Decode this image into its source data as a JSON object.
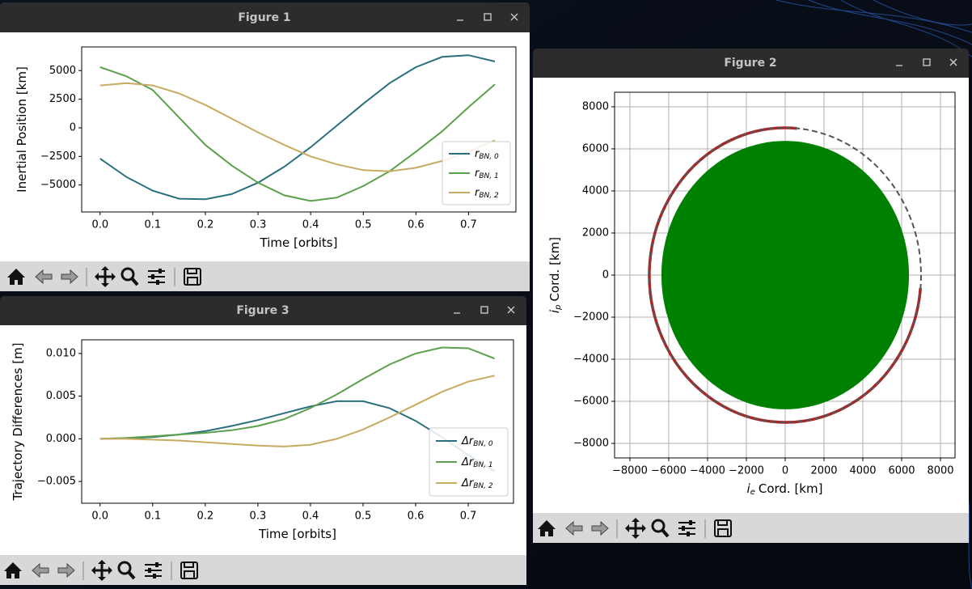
{
  "windows": [
    {
      "title": "Figure 1"
    },
    {
      "title": "Figure 2"
    },
    {
      "title": "Figure 3"
    }
  ],
  "chart_data": [
    {
      "type": "line",
      "xlabel": "Time [orbits]",
      "ylabel": "Inertial Position [km]",
      "x": [
        0,
        0.05,
        0.1,
        0.15,
        0.2,
        0.25,
        0.3,
        0.35,
        0.4,
        0.45,
        0.5,
        0.55,
        0.6,
        0.65,
        0.7,
        0.75
      ],
      "series": [
        {
          "name": "r",
          "name_subscript": "BN, 0",
          "color": "#2a6f7e",
          "values": [
            -2700,
            -4300,
            -5500,
            -6200,
            -6250,
            -5800,
            -4800,
            -3400,
            -1700,
            200,
            2100,
            3900,
            5300,
            6200,
            6350,
            5800
          ]
        },
        {
          "name": "r",
          "name_subscript": "BN, 1",
          "color": "#5ba04a",
          "values": [
            5300,
            4500,
            3300,
            900,
            -1500,
            -3300,
            -4800,
            -5900,
            -6400,
            -6100,
            -5100,
            -3800,
            -2100,
            -300,
            1800,
            3800
          ]
        },
        {
          "name": "r",
          "name_subscript": "BN, 2",
          "color": "#c8aa62",
          "values": [
            3700,
            3900,
            3700,
            3000,
            2000,
            800,
            -400,
            -1500,
            -2500,
            -3200,
            -3700,
            -3800,
            -3500,
            -2900,
            -2100,
            -1100
          ]
        }
      ],
      "xlim": [
        -0.035,
        0.79
      ],
      "ylim": [
        -7360,
        7070
      ],
      "xticks": [
        {
          "value": 0,
          "label": "0.0"
        },
        0.1,
        0.2,
        0.3,
        0.4,
        0.5,
        0.6,
        0.7
      ],
      "yticks": [
        {
          "value": -5000,
          "label": "−5000"
        },
        {
          "value": -2500,
          "label": "−2500"
        },
        0,
        2500,
        5000
      ],
      "grid": false,
      "legend": "lower right"
    },
    {
      "type": "orbit",
      "xlabel": "i",
      "xlabel_subscript": "e",
      "xlabel_suffix": "Cord. [km]",
      "ylabel": "i",
      "ylabel_subscript": "p",
      "ylabel_suffix": "Cord. [km]",
      "earth_radius": 6378,
      "earth_color": "#008000",
      "orbit_radius": 7000,
      "orbit_color": "#555555",
      "trajectory": {
        "color": "#b22222",
        "x": [
          610,
          -2958,
          -5734,
          -6973,
          -6344,
          -4015,
          -610,
          2958,
          5734,
          6973
        ],
        "y": [
          6973,
          6344,
          4015,
          610,
          -2958,
          -5734,
          -6973,
          -6344,
          -4015,
          -610
        ]
      },
      "xlim": [
        -8790,
        8750
      ],
      "ylim": [
        -8690,
        8690
      ],
      "xticks": [
        {
          "value": -8000,
          "label": "−8000"
        },
        {
          "value": -6000,
          "label": "−6000"
        },
        {
          "value": -4000,
          "label": "−4000"
        },
        {
          "value": -2000,
          "label": "−2000"
        },
        0,
        2000,
        4000,
        6000,
        8000
      ],
      "yticks": [
        {
          "value": -8000,
          "label": "−8000"
        },
        {
          "value": -6000,
          "label": "−6000"
        },
        {
          "value": -4000,
          "label": "−4000"
        },
        {
          "value": -2000,
          "label": "−2000"
        },
        0,
        2000,
        4000,
        6000,
        8000
      ],
      "grid": true
    },
    {
      "type": "line",
      "xlabel": "Time [orbits]",
      "ylabel": "Trajectory Differences [m]",
      "x": [
        0,
        0.05,
        0.1,
        0.15,
        0.2,
        0.25,
        0.3,
        0.35,
        0.4,
        0.45,
        0.5,
        0.55,
        0.6,
        0.65,
        0.7,
        0.75
      ],
      "series": [
        {
          "name": "Δr",
          "name_subscript": "BN, 0",
          "color": "#2a6f7e",
          "values": [
            0,
            5e-05,
            0.0002,
            0.0005,
            0.0009,
            0.0015,
            0.0022,
            0.003,
            0.0038,
            0.0044,
            0.0044,
            0.0036,
            0.0021,
            0.0002,
            -0.0019,
            -0.0038
          ]
        },
        {
          "name": "Δr",
          "name_subscript": "BN, 1",
          "color": "#5ba04a",
          "values": [
            0,
            0.0001,
            0.0003,
            0.0005,
            0.0007,
            0.001,
            0.0015,
            0.0023,
            0.0036,
            0.0052,
            0.007,
            0.0087,
            0.01,
            0.0107,
            0.0106,
            0.0094
          ]
        },
        {
          "name": "Δr",
          "name_subscript": "BN, 2",
          "color": "#c8aa62",
          "values": [
            0,
            0,
            -0.0001,
            -0.0002,
            -0.0004,
            -0.0006,
            -0.0008,
            -0.0009,
            -0.0007,
            0,
            0.0011,
            0.0025,
            0.004,
            0.0055,
            0.0067,
            0.0074
          ]
        }
      ],
      "xlim": [
        -0.035,
        0.786
      ],
      "ylim": [
        -0.00755,
        0.0116
      ],
      "xticks": [
        {
          "value": 0,
          "label": "0.0"
        },
        0.1,
        0.2,
        0.3,
        0.4,
        0.5,
        0.6,
        0.7
      ],
      "yticks": [
        {
          "value": -0.005,
          "label": "−0.005"
        },
        {
          "value": 0,
          "label": "0.000"
        },
        0.005,
        {
          "value": 0.01,
          "label": "0.010"
        }
      ],
      "grid": false,
      "legend": "lower right"
    }
  ]
}
